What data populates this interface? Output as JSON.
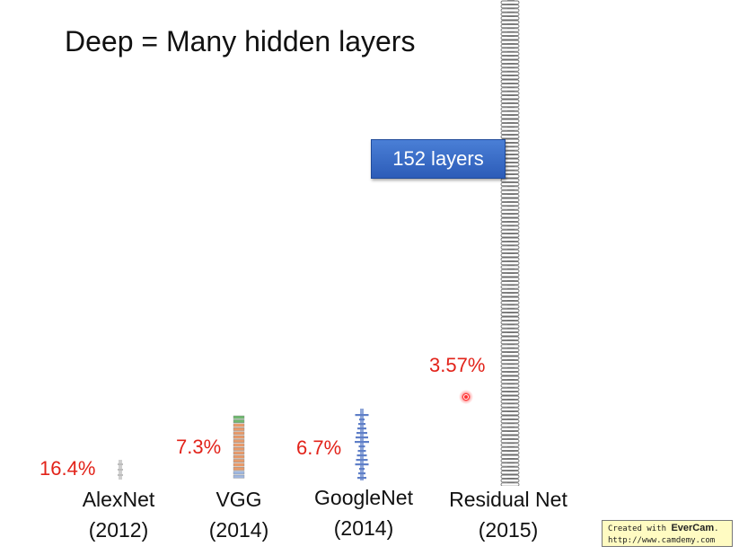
{
  "title": "Deep = Many hidden layers",
  "badge": "152 layers",
  "networks": [
    {
      "name": "AlexNet",
      "year": "(2012)",
      "error": "16.4%"
    },
    {
      "name": "VGG",
      "year": "(2014)",
      "error": "7.3%"
    },
    {
      "name": "GoogleNet",
      "year": "(2014)",
      "error": "6.7%"
    },
    {
      "name": "Residual Net",
      "year": "(2015)",
      "error": "3.57%"
    }
  ],
  "watermark": {
    "line1_prefix": "Created with ",
    "brand": "EverCam",
    "line1_suffix": ".",
    "url": "http://www.camdemy.com"
  }
}
